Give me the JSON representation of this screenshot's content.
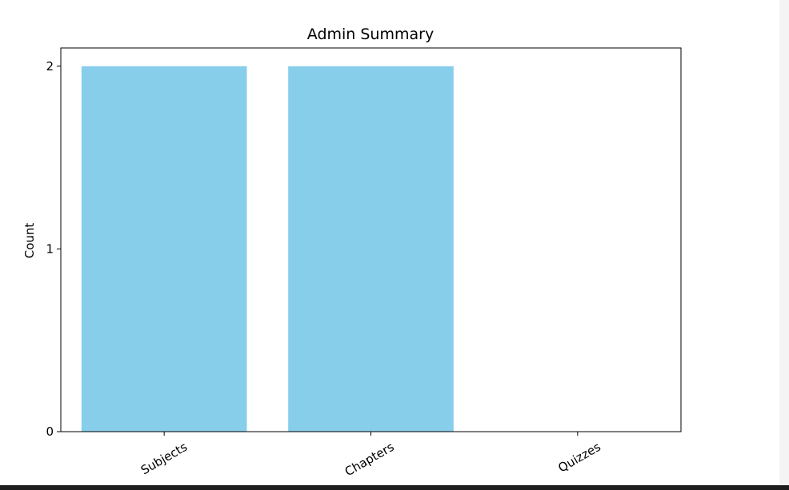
{
  "chart_data": {
    "type": "bar",
    "title": "Admin Summary",
    "xlabel": "",
    "ylabel": "Count",
    "categories": [
      "Subjects",
      "Chapters",
      "Quizzes"
    ],
    "values": [
      2,
      2,
      0
    ],
    "ylim": [
      0,
      2.1
    ],
    "yticks": [
      0,
      1,
      2
    ],
    "ytick_labels": [
      "0",
      "1",
      "2"
    ],
    "xtick_rotation_deg": 30,
    "grid": false,
    "legend": "none",
    "colors": {
      "bar": "#87CEEB",
      "axes": "#000000",
      "background": "#ffffff"
    }
  }
}
